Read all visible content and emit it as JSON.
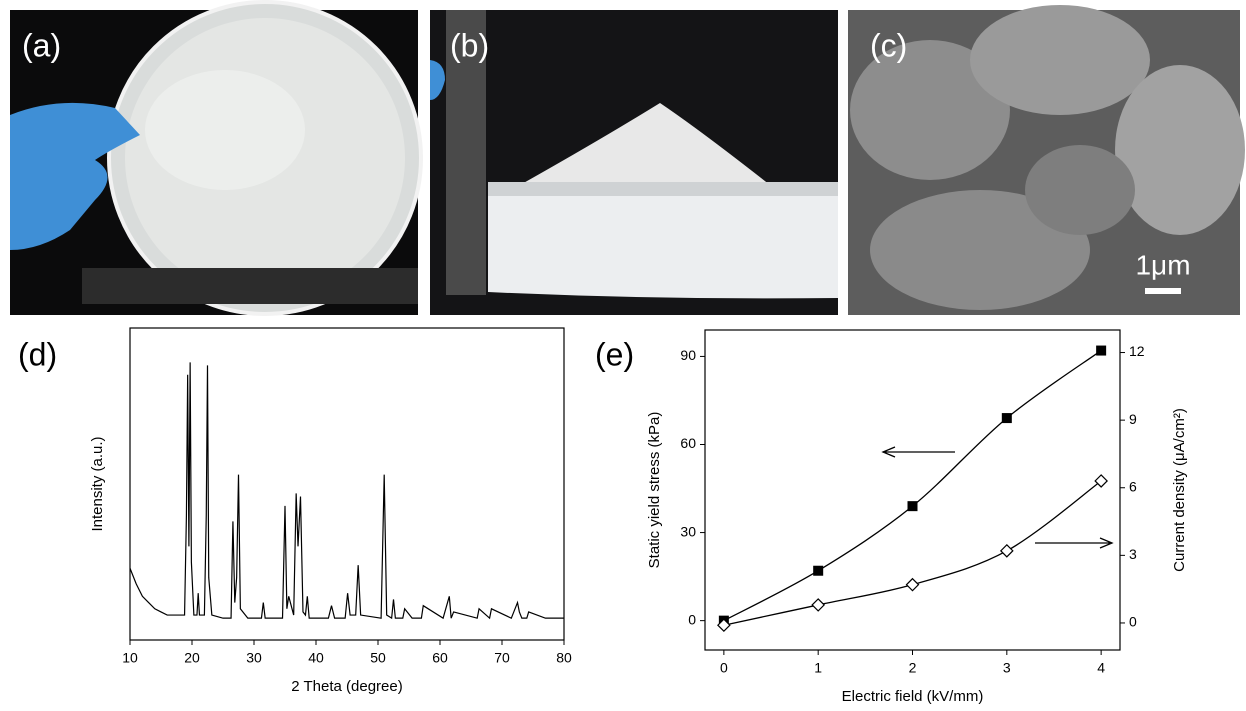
{
  "panels": [
    {
      "label": "(a)"
    },
    {
      "label": "(b)"
    },
    {
      "label": "(c)",
      "scale_bar": "1μm"
    }
  ],
  "chart_data": [
    {
      "type": "line",
      "panel_label": "(d)",
      "xlabel": "2 Theta (degree)",
      "ylabel": "Intensity (a.u.)",
      "color": "#000000",
      "xlim": [
        10,
        80
      ],
      "xticks": [
        10,
        20,
        30,
        40,
        50,
        60,
        70,
        80
      ],
      "ylim": [
        0,
        100
      ],
      "x": [
        10,
        11,
        12,
        13,
        14,
        15,
        16,
        17,
        18,
        18.8,
        19.1,
        19.3,
        19.5,
        19.7,
        19.9,
        20.3,
        20.8,
        21,
        21.2,
        22,
        22.3,
        22.5,
        22.7,
        23.2,
        25,
        26.3,
        26.6,
        26.9,
        27.2,
        27.5,
        27.8,
        29,
        31.2,
        31.5,
        31.8,
        34.6,
        35,
        35.3,
        35.6,
        36.4,
        36.8,
        37.1,
        37.5,
        37.9,
        38.3,
        38.6,
        38.9,
        42,
        42.5,
        43,
        44.7,
        45.1,
        45.5,
        46.4,
        46.8,
        47.2,
        50.5,
        51,
        51.4,
        52.2,
        52.5,
        52.8,
        54,
        54.3,
        55.5,
        57,
        57.3,
        60.5,
        61.5,
        61.8,
        62.2,
        66,
        66.3,
        68,
        68.3,
        71.5,
        72.5,
        72.8,
        73.2,
        74,
        74.3,
        77,
        80
      ],
      "values": [
        23,
        18,
        14,
        12,
        10,
        9,
        8,
        8,
        8,
        8,
        40,
        85,
        30,
        89,
        25,
        8,
        8,
        15,
        8,
        8,
        40,
        88,
        20,
        8,
        7,
        7,
        38,
        12,
        20,
        53,
        10,
        7,
        7,
        12,
        7,
        7,
        43,
        10,
        14,
        8,
        47,
        30,
        46,
        9,
        8,
        14,
        7,
        7,
        11,
        7,
        7,
        15,
        8,
        8,
        24,
        8,
        7,
        53,
        8,
        7,
        13,
        7,
        7,
        10,
        7,
        7,
        11,
        7,
        14,
        7,
        9,
        7,
        10,
        7,
        10,
        7,
        12,
        9,
        7,
        7,
        9,
        7,
        7
      ]
    },
    {
      "type": "line",
      "panel_label": "(e)",
      "xlabel": "Electric field (kV/mm)",
      "ylabel": "Static yield stress (kPa)",
      "y2label": "Current density (μA/cm²)",
      "xlim": [
        -0.2,
        4.2
      ],
      "xticks": [
        0,
        1,
        2,
        3,
        4
      ],
      "ylim": [
        -10,
        99
      ],
      "yticks": [
        0,
        30,
        60,
        90
      ],
      "y2lim": [
        -1.2,
        13
      ],
      "y2ticks": [
        0,
        3,
        6,
        9,
        12
      ],
      "x": [
        0,
        1,
        2,
        3,
        4
      ],
      "series": [
        {
          "values": [
            0,
            17,
            39,
            69,
            92
          ],
          "color": "#000000",
          "marker": "square"
        },
        {
          "values": [
            -0.1,
            0.8,
            1.7,
            3.2,
            6.3
          ],
          "color": "#000000",
          "marker": "diamond",
          "axis": "y2"
        }
      ]
    }
  ]
}
